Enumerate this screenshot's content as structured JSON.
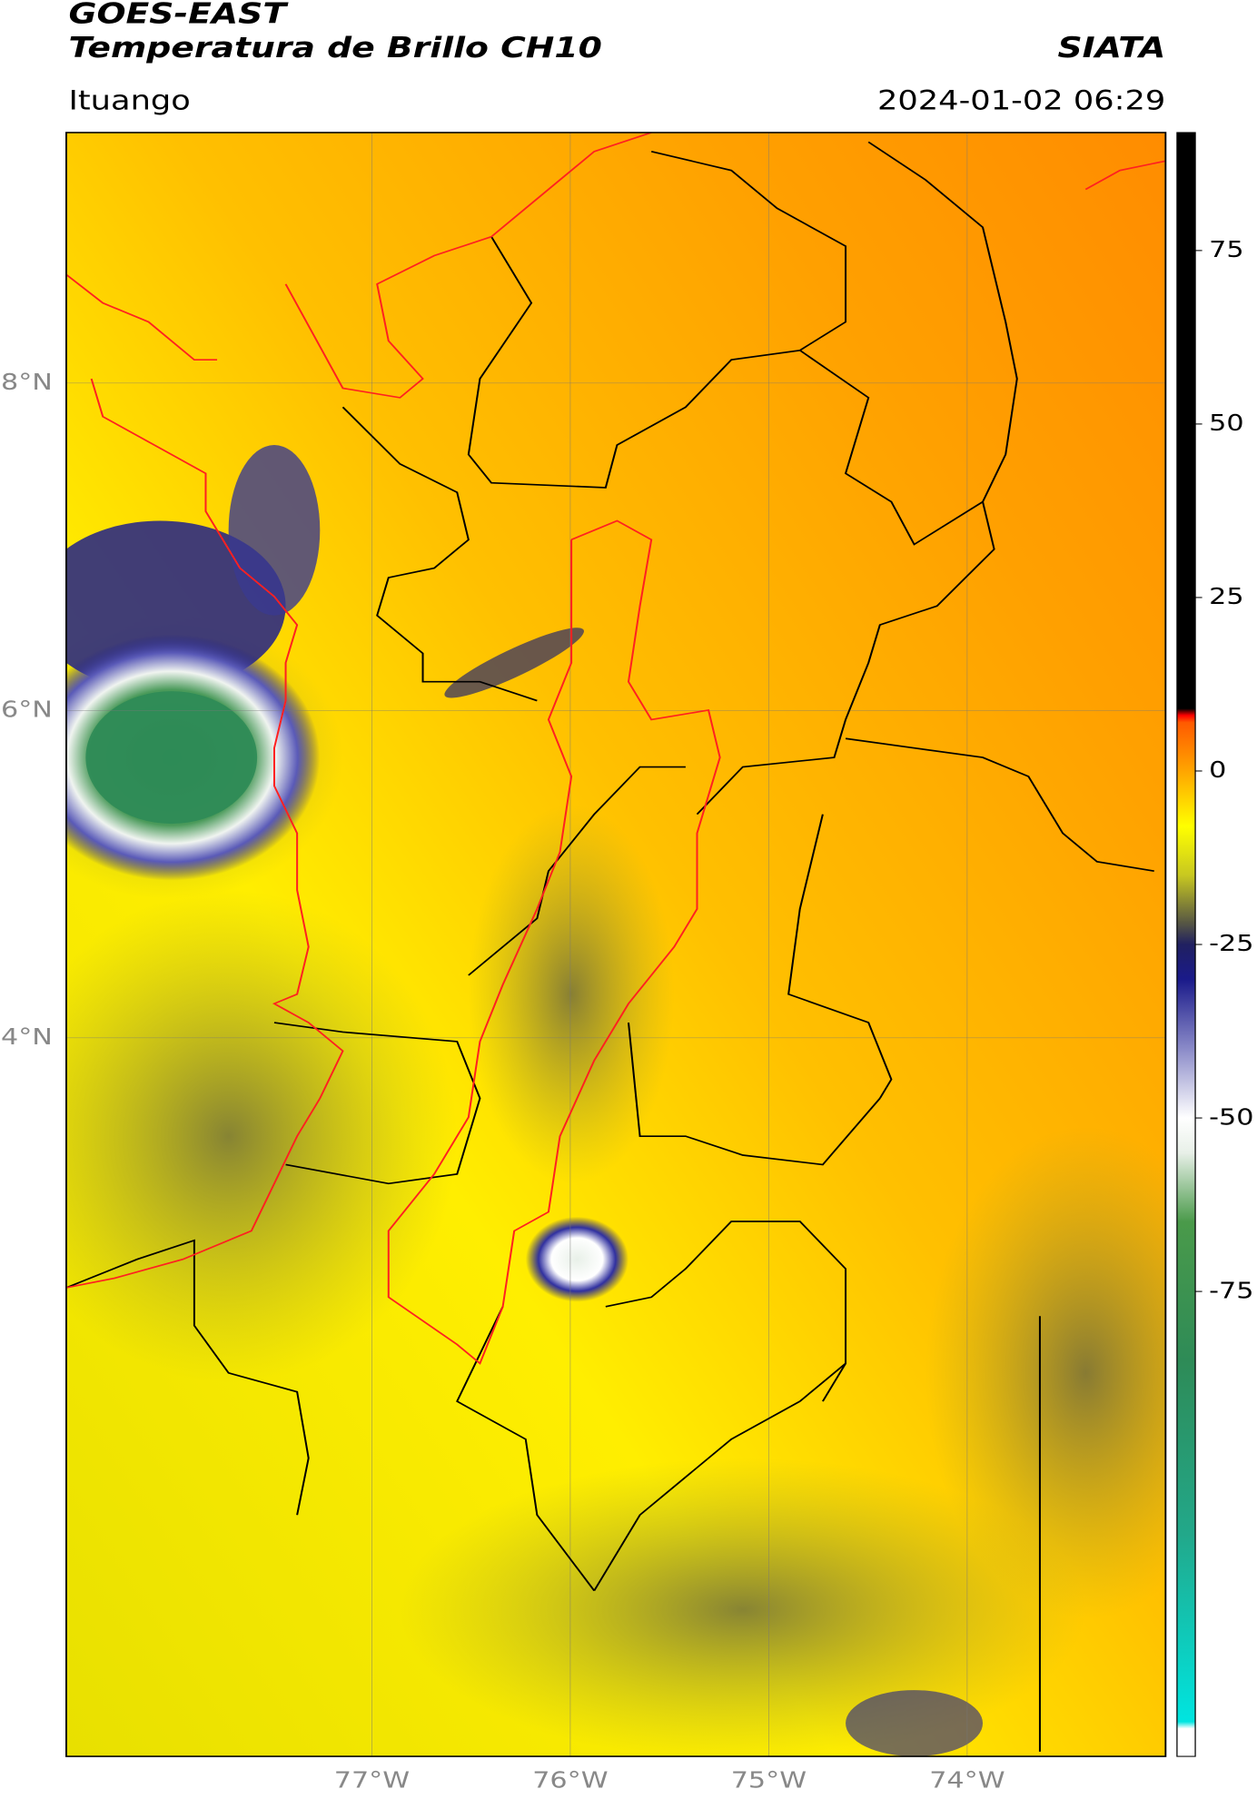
{
  "chart_data": {
    "type": "map",
    "title": "GOES-EAST",
    "subtitle": "Temperatura de Brillo CH10",
    "source": "SIATA",
    "location": "Ituango",
    "datetime": "2024-01-02 06:29",
    "xlim": [
      -78.54,
      -73.0
    ],
    "ylim": [
      -0.39,
      9.53
    ],
    "xticks": [
      {
        "value": -77,
        "label": "77°W"
      },
      {
        "value": -76,
        "label": "76°W"
      },
      {
        "value": -75,
        "label": "75°W"
      },
      {
        "value": -74,
        "label": "74°W"
      }
    ],
    "yticks": [
      {
        "value": 8,
        "label": "8°N"
      },
      {
        "value": 6,
        "label": "6°N"
      },
      {
        "value": 4,
        "label": "4°N"
      }
    ],
    "grid": true,
    "clim": [
      -142,
      92
    ],
    "cticks": [
      75,
      50,
      25,
      0,
      -25,
      -50,
      -75
    ],
    "colormap": [
      {
        "value": -142,
        "color": "#ffffff"
      },
      {
        "value": -138,
        "color": "#ffffff"
      },
      {
        "value": -137,
        "color": "#00e5e0"
      },
      {
        "value": -110,
        "color": "#22a88a"
      },
      {
        "value": -85,
        "color": "#2e8b57"
      },
      {
        "value": -65,
        "color": "#4a9a4a"
      },
      {
        "value": -55,
        "color": "#e8f0e8"
      },
      {
        "value": -50,
        "color": "#ffffff"
      },
      {
        "value": -40,
        "color": "#8a8ac8"
      },
      {
        "value": -30,
        "color": "#1a1a8a"
      },
      {
        "value": -25,
        "color": "#202060"
      },
      {
        "value": -22,
        "color": "#555544"
      },
      {
        "value": -15,
        "color": "#c8c820"
      },
      {
        "value": -8,
        "color": "#ffff00"
      },
      {
        "value": 0,
        "color": "#ffa500"
      },
      {
        "value": 7,
        "color": "#ff5a00"
      },
      {
        "value": 8,
        "color": "#ff0000"
      },
      {
        "value": 9,
        "color": "#000000"
      },
      {
        "value": 92,
        "color": "#000000"
      }
    ]
  }
}
